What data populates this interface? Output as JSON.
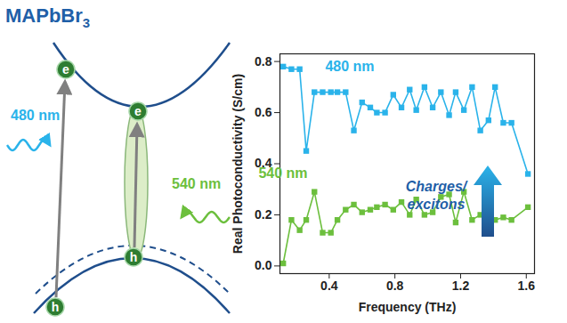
{
  "chart_data": {
    "type": "line",
    "x_label": "Frequency (THz)",
    "y_label": "Real Photoconductivity (S/cm)",
    "x": [
      0.12,
      0.17,
      0.22,
      0.26,
      0.31,
      0.36,
      0.41,
      0.45,
      0.5,
      0.55,
      0.6,
      0.65,
      0.69,
      0.74,
      0.79,
      0.84,
      0.89,
      0.93,
      0.98,
      1.03,
      1.08,
      1.13,
      1.17,
      1.22,
      1.27,
      1.32,
      1.37,
      1.41,
      1.46,
      1.51,
      1.61
    ],
    "series": [
      {
        "name": "480 nm",
        "color": "#2ab3ea",
        "marker": "square",
        "values": [
          0.78,
          0.77,
          0.77,
          0.45,
          0.68,
          0.68,
          0.68,
          0.68,
          0.68,
          0.53,
          0.64,
          0.62,
          0.6,
          0.6,
          0.67,
          0.62,
          0.69,
          0.61,
          0.7,
          0.62,
          0.68,
          0.59,
          0.68,
          0.61,
          0.7,
          0.53,
          0.57,
          0.7,
          0.56,
          0.56,
          0.36
        ]
      },
      {
        "name": "540 nm",
        "color": "#6cbf3d",
        "marker": "square",
        "values": [
          0.01,
          0.18,
          0.14,
          0.18,
          0.29,
          0.13,
          0.13,
          0.18,
          0.22,
          0.24,
          0.21,
          0.22,
          0.23,
          0.24,
          0.22,
          0.25,
          0.2,
          0.26,
          0.2,
          0.21,
          0.27,
          0.28,
          0.17,
          0.29,
          0.18,
          0.2,
          0.21,
          0.18,
          0.19,
          0.18,
          0.23
        ]
      }
    ],
    "xlim": [
      0.1,
      1.65
    ],
    "xticks": [
      0.4,
      0.8,
      1.2,
      1.6
    ],
    "ylim": [
      -0.03,
      0.83
    ],
    "yticks": [
      {
        "value": 0,
        "label": "0.0"
      },
      0.2,
      0.4,
      0.6,
      0.8
    ],
    "grid": false,
    "annotation": [
      "Charges/",
      "excitons"
    ]
  },
  "diagram": {
    "title": {
      "text": "MAPbBr",
      "subscript": "3"
    },
    "excitations": [
      {
        "wavelength": "480 nm",
        "color": "#2ab3ea",
        "electron": "e",
        "hole": "h"
      },
      {
        "wavelength": "540 nm",
        "color": "#6cbf3d",
        "electron": "e",
        "hole": "h"
      }
    ]
  }
}
